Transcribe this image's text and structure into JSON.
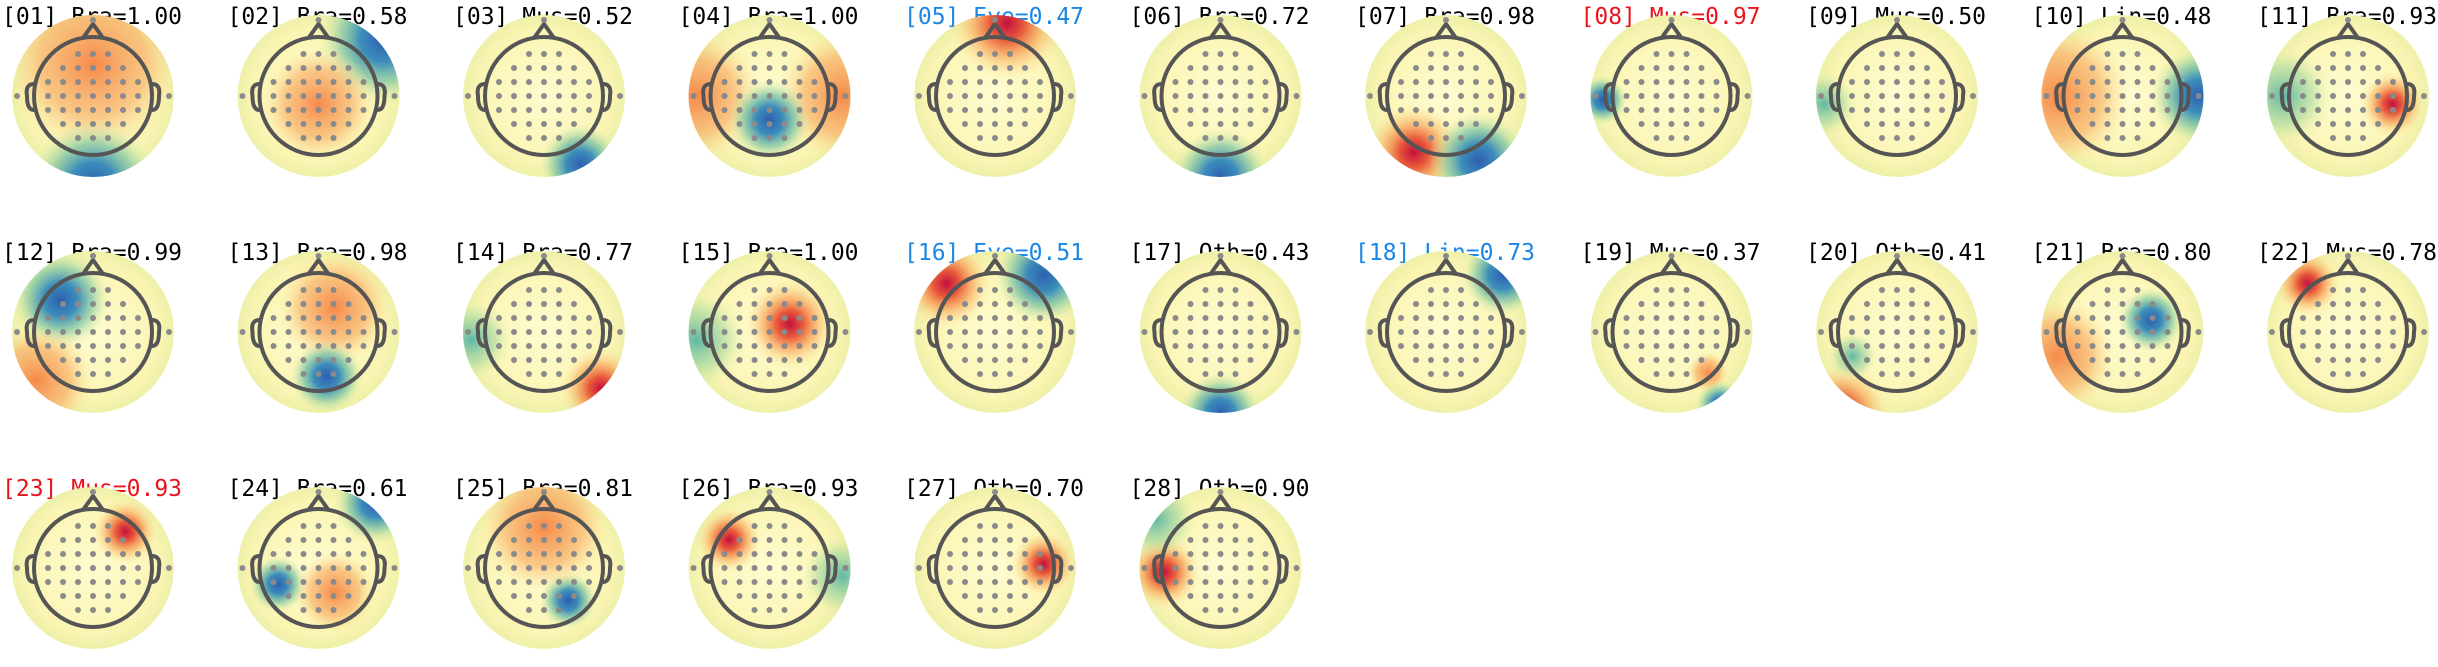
{
  "components": [
    {
      "label": "[01] Bra=1.00",
      "color": "#000000"
    },
    {
      "label": "[02] Bra=0.58",
      "color": "#000000"
    },
    {
      "label": "[03] Mus=0.52",
      "color": "#000000"
    },
    {
      "label": "[04] Bra=1.00",
      "color": "#000000"
    },
    {
      "label": "[05] Eye=0.47",
      "color": "#1a86e6"
    },
    {
      "label": "[06] Bra=0.72",
      "color": "#000000"
    },
    {
      "label": "[07] Bra=0.98",
      "color": "#000000"
    },
    {
      "label": "[08] Mus=0.97",
      "color": "#e8141c"
    },
    {
      "label": "[09] Mus=0.50",
      "color": "#000000"
    },
    {
      "label": "[10] Lin=0.48",
      "color": "#000000"
    },
    {
      "label": "[11] Bra=0.93",
      "color": "#000000"
    },
    {
      "label": "[12] Bra=0.99",
      "color": "#000000"
    },
    {
      "label": "[13] Bra=0.98",
      "color": "#000000"
    },
    {
      "label": "[14] Bra=0.77",
      "color": "#000000"
    },
    {
      "label": "[15] Bra=1.00",
      "color": "#000000"
    },
    {
      "label": "[16] Eye=0.51",
      "color": "#1a86e6"
    },
    {
      "label": "[17] Oth=0.43",
      "color": "#000000"
    },
    {
      "label": "[18] Lin=0.73",
      "color": "#1a86e6"
    },
    {
      "label": "[19] Mus=0.37",
      "color": "#000000"
    },
    {
      "label": "[20] Oth=0.41",
      "color": "#000000"
    },
    {
      "label": "[21] Bra=0.80",
      "color": "#000000"
    },
    {
      "label": "[22] Mus=0.78",
      "color": "#000000"
    },
    {
      "label": "[23] Mus=0.93",
      "color": "#e8141c"
    },
    {
      "label": "[24] Bra=0.61",
      "color": "#000000"
    },
    {
      "label": "[25] Bra=0.81",
      "color": "#000000"
    },
    {
      "label": "[26] Bra=0.93",
      "color": "#000000"
    },
    {
      "label": "[27] Oth=0.70",
      "color": "#000000"
    },
    {
      "label": "[28] Oth=0.90",
      "color": "#000000"
    }
  ]
}
